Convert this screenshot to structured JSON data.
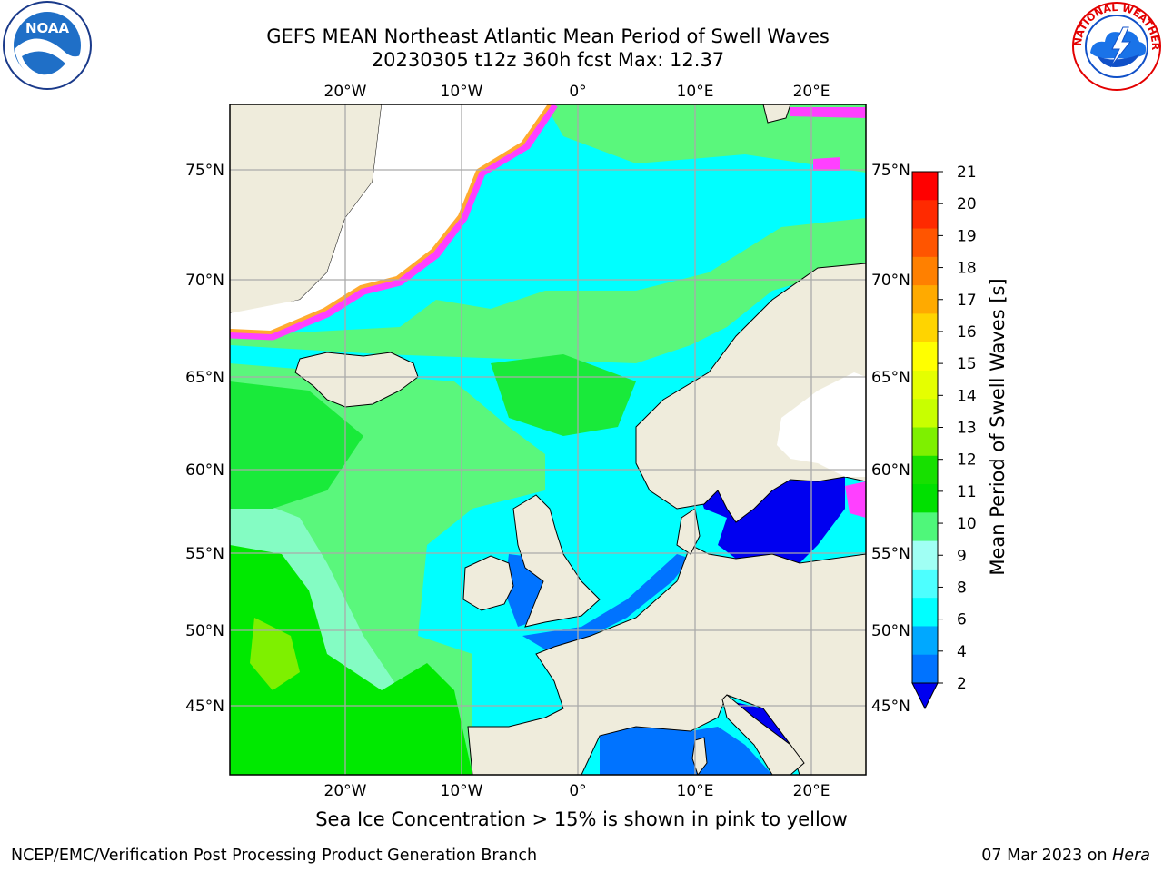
{
  "header": {
    "title_line1": "GEFS MEAN Northeast Atlantic Mean Period of Swell Waves",
    "title_line2": "20230305 t12z 360h fcst   Max: 12.37"
  },
  "logos": {
    "left": "noaa-logo",
    "left_text": "NOAA",
    "right": "nws-logo",
    "right_text": "NATIONAL WEATHER SERVICE"
  },
  "map": {
    "lon_labels_top": [
      "20°W",
      "10°W",
      "0°",
      "10°E",
      "20°E"
    ],
    "lon_labels_bottom": [
      "20°W",
      "10°W",
      "0°",
      "10°E",
      "20°E"
    ],
    "lat_labels_left": [
      "75°N",
      "70°N",
      "65°N",
      "60°N",
      "55°N",
      "50°N",
      "45°N"
    ],
    "lat_labels_right": [
      "75°N",
      "70°N",
      "65°N",
      "60°N",
      "55°N",
      "50°N",
      "45°N"
    ],
    "colors": {
      "land": "#efecdc",
      "ocean_cyan": "#00ffff",
      "light_cyan": "#a0fff4",
      "light_green": "#5af77c",
      "green": "#19ea3a",
      "bright_green": "#00e900",
      "blue": "#0073ff",
      "deep_blue": "#0000f0",
      "ice_pink": "#ff40ff",
      "ice_orange": "#ffaa30"
    }
  },
  "colorbar": {
    "label": "Mean Period of Swell Waves [s]",
    "ticks": [
      "21",
      "20",
      "19",
      "18",
      "17",
      "16",
      "15",
      "14",
      "13",
      "12",
      "11",
      "10",
      "9",
      "8",
      "6",
      "4",
      "2"
    ],
    "colors": [
      "#ff0000",
      "#ff2a00",
      "#ff5500",
      "#ff8000",
      "#ffaa00",
      "#ffd400",
      "#ffff00",
      "#e5ff00",
      "#c8ff00",
      "#7ef000",
      "#17e000",
      "#00e000",
      "#4ff77a",
      "#a0fff4",
      "#4dffff",
      "#00ffff",
      "#00a8ff",
      "#0073ff"
    ]
  },
  "caption": "Sea Ice Concentration > 15% is shown in pink to yellow",
  "footer": {
    "left": "NCEP/EMC/Verification Post Processing Product Generation Branch",
    "right_prefix": "07 Mar 2023 on ",
    "right_host": "Hera"
  }
}
